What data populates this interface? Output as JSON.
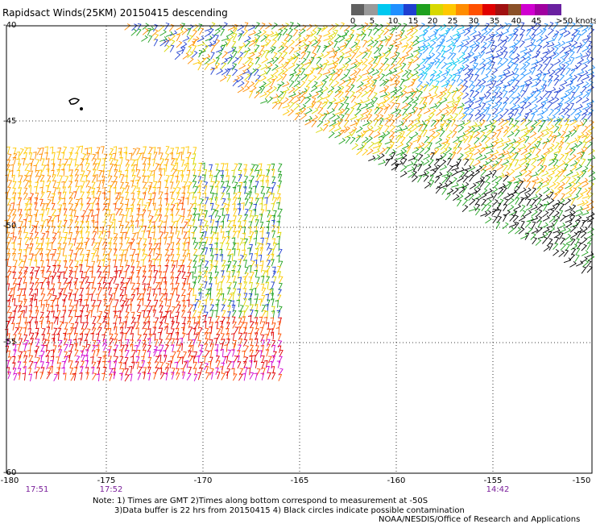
{
  "title": "Rapidsact Winds(25KM) 20150415 descending",
  "colorbar": {
    "labels": [
      "0",
      "5",
      "10",
      "15",
      "20",
      "25",
      "30",
      "35",
      "40",
      "45",
      ">50 knots"
    ],
    "colors": [
      "#606060",
      "#9a9a9a",
      "#00c8f0",
      "#2090ff",
      "#1f3fd0",
      "#1ea01e",
      "#d8d800",
      "#ffc800",
      "#ff8c00",
      "#ff5000",
      "#e00000",
      "#a01010",
      "#8a5028",
      "#d000d0",
      "#a000a0",
      "#6a20a0"
    ]
  },
  "lat_labels": [
    "-40",
    "-45",
    "-50",
    "-55",
    "-60"
  ],
  "lon_labels": [
    "-180",
    "-175",
    "-170",
    "-165",
    "-160",
    "-155",
    "-150"
  ],
  "time_labels": [
    "17:51",
    "17:52",
    "14:42"
  ],
  "notes": {
    "line1": "Note: 1) Times are GMT 2)Times along bottom correspond to measurement at -50S",
    "line2": "3)Data buffer is 22 hrs from 20150415 4) Black circles indicate possible contamination",
    "line3": "NOAA/NESDIS/Office of Research and Applications"
  }
}
